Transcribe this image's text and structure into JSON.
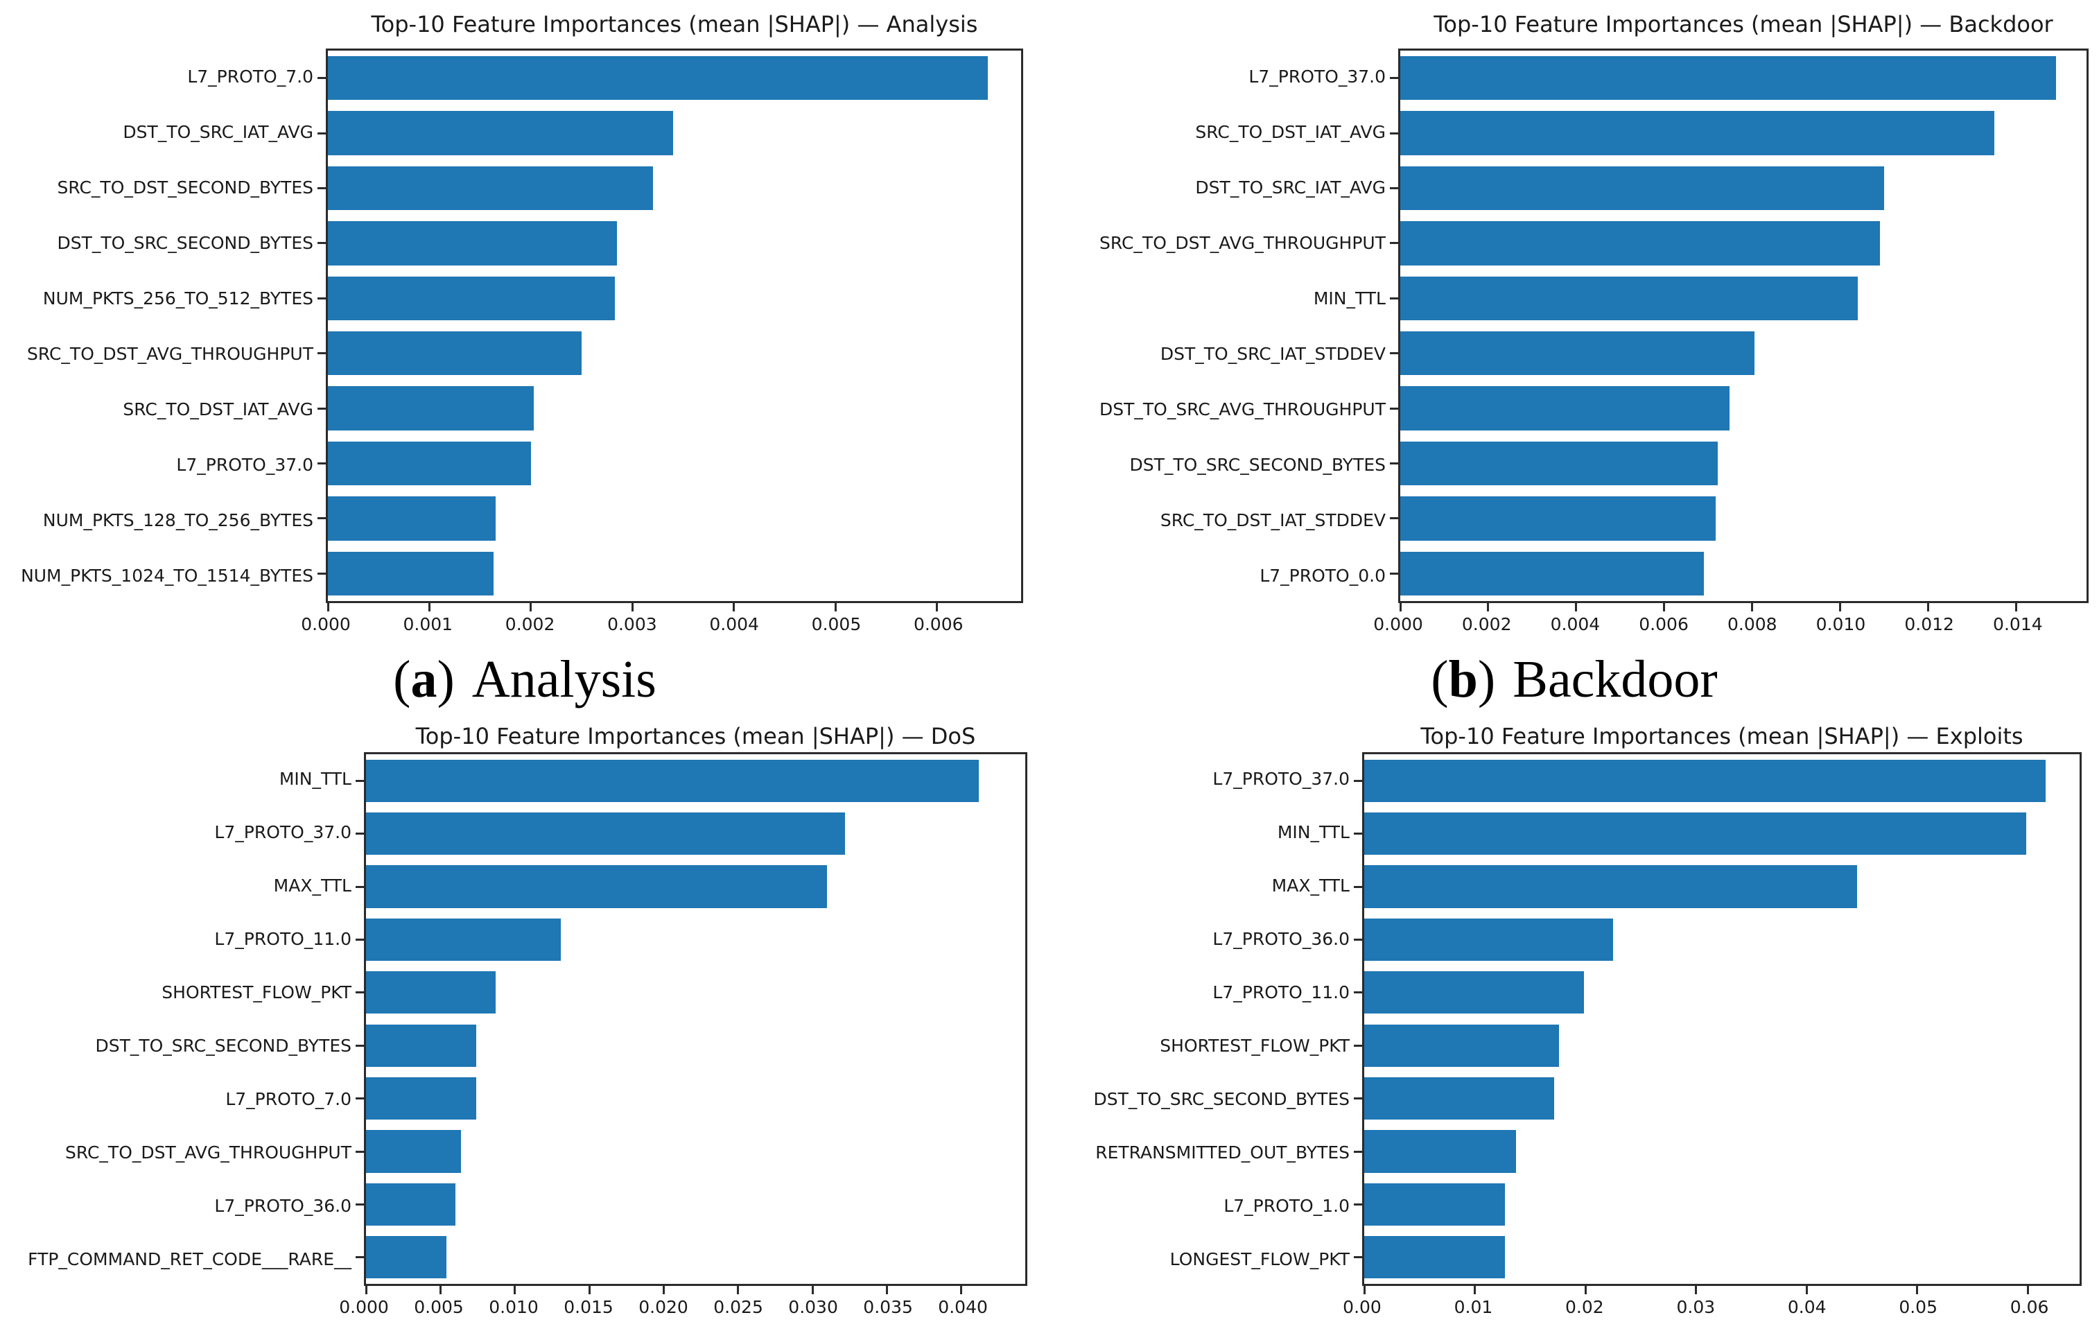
{
  "figure": {
    "captions": [
      {
        "open": "(",
        "letter": "a",
        "close": ")",
        "label": "Analysis"
      },
      {
        "open": "(",
        "letter": "b",
        "close": ")",
        "label": "Backdoor"
      }
    ]
  },
  "chart_data": [
    {
      "type": "bar",
      "orientation": "horizontal",
      "title": "Top-10 Feature Importances (mean |SHAP|) — Analysis",
      "categories": [
        "L7_PROTO_7.0",
        "DST_TO_SRC_IAT_AVG",
        "SRC_TO_DST_SECOND_BYTES",
        "DST_TO_SRC_SECOND_BYTES",
        "NUM_PKTS_256_TO_512_BYTES",
        "SRC_TO_DST_AVG_THROUGHPUT",
        "SRC_TO_DST_IAT_AVG",
        "L7_PROTO_37.0",
        "NUM_PKTS_128_TO_256_BYTES",
        "NUM_PKTS_1024_TO_1514_BYTES"
      ],
      "values": [
        0.0065,
        0.0034,
        0.0032,
        0.00285,
        0.00283,
        0.0025,
        0.00203,
        0.002,
        0.00165,
        0.00163
      ],
      "xlim": [
        0,
        0.00683
      ],
      "xticks": [
        0,
        0.001,
        0.002,
        0.003,
        0.004,
        0.005,
        0.006
      ],
      "tick_decimals": 3,
      "xlabel": "",
      "ylabel": "",
      "grid": false,
      "bar_color": "#1f77b4"
    },
    {
      "type": "bar",
      "orientation": "horizontal",
      "title": "Top-10 Feature Importances (mean |SHAP|) — Backdoor",
      "categories": [
        "L7_PROTO_37.0",
        "SRC_TO_DST_IAT_AVG",
        "DST_TO_SRC_IAT_AVG",
        "SRC_TO_DST_AVG_THROUGHPUT",
        "MIN_TTL",
        "DST_TO_SRC_IAT_STDDEV",
        "DST_TO_SRC_AVG_THROUGHPUT",
        "DST_TO_SRC_SECOND_BYTES",
        "SRC_TO_DST_IAT_STDDEV",
        "L7_PROTO_0.0"
      ],
      "values": [
        0.0149,
        0.0135,
        0.011,
        0.0109,
        0.0104,
        0.00805,
        0.00748,
        0.00722,
        0.00717,
        0.0069
      ],
      "xlim": [
        0,
        0.0156
      ],
      "xticks": [
        0,
        0.002,
        0.004,
        0.006,
        0.008,
        0.01,
        0.012,
        0.014
      ],
      "tick_decimals": 3,
      "xlabel": "",
      "ylabel": "",
      "grid": false,
      "bar_color": "#1f77b4"
    },
    {
      "type": "bar",
      "orientation": "horizontal",
      "title": "Top-10 Feature Importances (mean |SHAP|) — DoS",
      "categories": [
        "MIN_TTL",
        "L7_PROTO_37.0",
        "MAX_TTL",
        "L7_PROTO_11.0",
        "SHORTEST_FLOW_PKT",
        "DST_TO_SRC_SECOND_BYTES",
        "L7_PROTO_7.0",
        "SRC_TO_DST_AVG_THROUGHPUT",
        "L7_PROTO_36.0",
        "FTP_COMMAND_RET_CODE___RARE__"
      ],
      "values": [
        0.0412,
        0.0322,
        0.031,
        0.0131,
        0.0087,
        0.0074,
        0.0074,
        0.0064,
        0.006,
        0.0054
      ],
      "xlim": [
        0,
        0.0443
      ],
      "xticks": [
        0,
        0.005,
        0.01,
        0.015,
        0.02,
        0.025,
        0.03,
        0.035,
        0.04
      ],
      "tick_decimals": 3,
      "xlabel": "",
      "ylabel": "",
      "grid": false,
      "bar_color": "#1f77b4"
    },
    {
      "type": "bar",
      "orientation": "horizontal",
      "title": "Top-10 Feature Importances (mean |SHAP|) — Exploits",
      "categories": [
        "L7_PROTO_37.0",
        "MIN_TTL",
        "MAX_TTL",
        "L7_PROTO_36.0",
        "L7_PROTO_11.0",
        "SHORTEST_FLOW_PKT",
        "DST_TO_SRC_SECOND_BYTES",
        "RETRANSMITTED_OUT_BYTES",
        "L7_PROTO_1.0",
        "LONGEST_FLOW_PKT"
      ],
      "values": [
        0.0616,
        0.0599,
        0.0446,
        0.0225,
        0.0199,
        0.0176,
        0.0172,
        0.0137,
        0.0127,
        0.0127
      ],
      "xlim": [
        0,
        0.0647
      ],
      "xticks": [
        0,
        0.01,
        0.02,
        0.03,
        0.04,
        0.05,
        0.06
      ],
      "tick_decimals": 2,
      "xlabel": "",
      "ylabel": "",
      "grid": false,
      "bar_color": "#1f77b4"
    }
  ]
}
